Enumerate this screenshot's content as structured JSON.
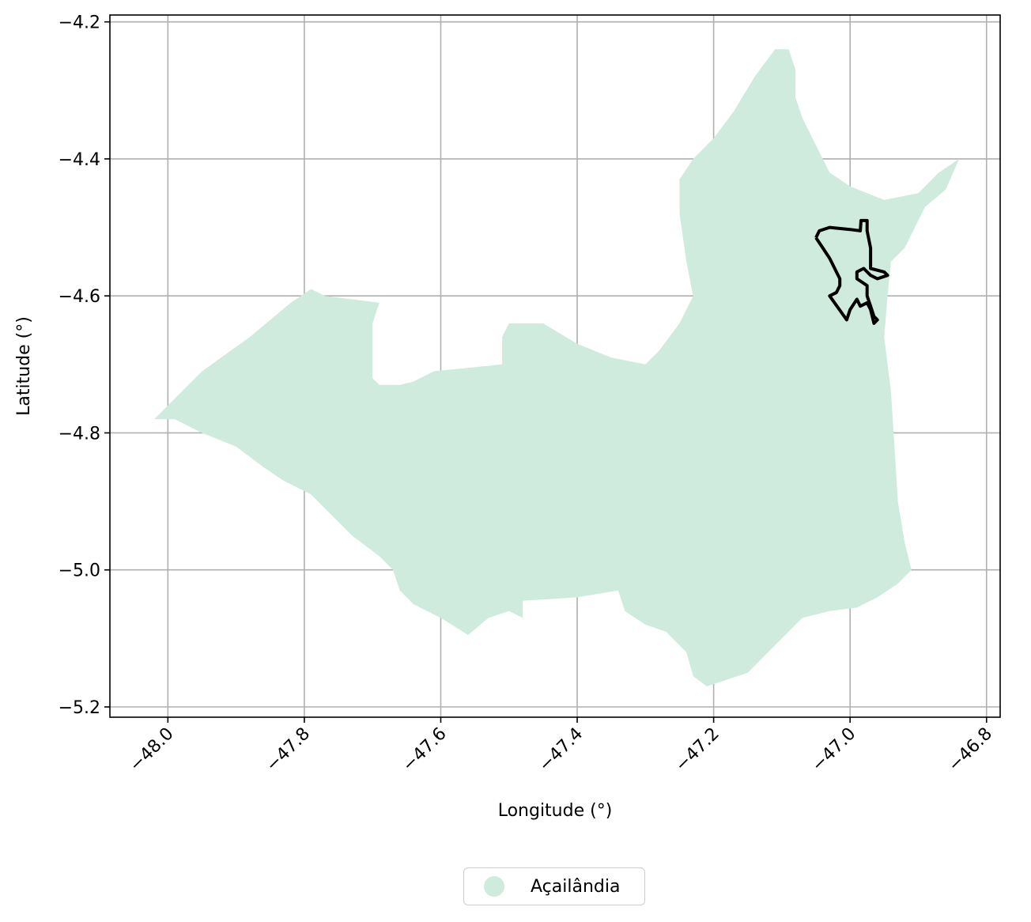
{
  "chart_data": {
    "type": "map",
    "xlabel": "Longitude (°)",
    "ylabel": "Latitude (°)",
    "xlim": [
      -48.085,
      -46.78
    ],
    "ylim": [
      -5.215,
      -4.19
    ],
    "xticks": [
      -48.0,
      -47.8,
      -47.6,
      -47.4,
      -47.2,
      -47.0,
      -46.8
    ],
    "xtick_labels": [
      "−48.0",
      "−47.8",
      "−47.6",
      "−47.4",
      "−47.2",
      "−47.0",
      "−46.8"
    ],
    "yticks": [
      -4.2,
      -4.4,
      -4.6,
      -4.8,
      -5.0,
      -5.2
    ],
    "ytick_labels": [
      "−4.2",
      "−4.4",
      "−4.6",
      "−4.8",
      "−5.0",
      "−5.2"
    ],
    "grid": true,
    "legend_position": "bottom-center",
    "region": {
      "name": "Açailândia",
      "color": "#cfebdd",
      "outline": [
        [
          -48.02,
          -4.78
        ],
        [
          -47.99,
          -4.78
        ],
        [
          -47.95,
          -4.8
        ],
        [
          -47.9,
          -4.82
        ],
        [
          -47.86,
          -4.85
        ],
        [
          -47.83,
          -4.87
        ],
        [
          -47.79,
          -4.89
        ],
        [
          -47.76,
          -4.92
        ],
        [
          -47.73,
          -4.95
        ],
        [
          -47.69,
          -4.98
        ],
        [
          -47.67,
          -5.0
        ],
        [
          -47.66,
          -5.03
        ],
        [
          -47.64,
          -5.05
        ],
        [
          -47.6,
          -5.07
        ],
        [
          -47.56,
          -5.095
        ],
        [
          -47.53,
          -5.07
        ],
        [
          -47.5,
          -5.06
        ],
        [
          -47.48,
          -5.07
        ],
        [
          -47.48,
          -5.045
        ],
        [
          -47.4,
          -5.04
        ],
        [
          -47.34,
          -5.03
        ],
        [
          -47.33,
          -5.06
        ],
        [
          -47.3,
          -5.08
        ],
        [
          -47.27,
          -5.09
        ],
        [
          -47.24,
          -5.12
        ],
        [
          -47.23,
          -5.155
        ],
        [
          -47.21,
          -5.17
        ],
        [
          -47.15,
          -5.15
        ],
        [
          -47.13,
          -5.13
        ],
        [
          -47.1,
          -5.1
        ],
        [
          -47.07,
          -5.07
        ],
        [
          -47.03,
          -5.06
        ],
        [
          -46.99,
          -5.055
        ],
        [
          -46.96,
          -5.04
        ],
        [
          -46.93,
          -5.02
        ],
        [
          -46.91,
          -5.0
        ],
        [
          -46.92,
          -4.96
        ],
        [
          -46.93,
          -4.9
        ],
        [
          -46.935,
          -4.82
        ],
        [
          -46.94,
          -4.74
        ],
        [
          -46.95,
          -4.66
        ],
        [
          -46.945,
          -4.6
        ],
        [
          -46.94,
          -4.55
        ],
        [
          -46.92,
          -4.53
        ],
        [
          -46.89,
          -4.47
        ],
        [
          -46.86,
          -4.445
        ],
        [
          -46.84,
          -4.4
        ],
        [
          -46.87,
          -4.42
        ],
        [
          -46.9,
          -4.45
        ],
        [
          -46.95,
          -4.46
        ],
        [
          -47.0,
          -4.44
        ],
        [
          -47.03,
          -4.42
        ],
        [
          -47.05,
          -4.38
        ],
        [
          -47.07,
          -4.34
        ],
        [
          -47.08,
          -4.31
        ],
        [
          -47.08,
          -4.27
        ],
        [
          -47.09,
          -4.24
        ],
        [
          -47.11,
          -4.24
        ],
        [
          -47.14,
          -4.28
        ],
        [
          -47.17,
          -4.33
        ],
        [
          -47.2,
          -4.37
        ],
        [
          -47.23,
          -4.4
        ],
        [
          -47.25,
          -4.43
        ],
        [
          -47.25,
          -4.48
        ],
        [
          -47.24,
          -4.55
        ],
        [
          -47.23,
          -4.6
        ],
        [
          -47.25,
          -4.64
        ],
        [
          -47.28,
          -4.68
        ],
        [
          -47.3,
          -4.7
        ],
        [
          -47.35,
          -4.69
        ],
        [
          -47.4,
          -4.67
        ],
        [
          -47.45,
          -4.64
        ],
        [
          -47.5,
          -4.64
        ],
        [
          -47.51,
          -4.66
        ],
        [
          -47.51,
          -4.7
        ],
        [
          -47.56,
          -4.705
        ],
        [
          -47.61,
          -4.71
        ],
        [
          -47.64,
          -4.725
        ],
        [
          -47.66,
          -4.73
        ],
        [
          -47.69,
          -4.73
        ],
        [
          -47.7,
          -4.72
        ],
        [
          -47.7,
          -4.64
        ],
        [
          -47.69,
          -4.61
        ],
        [
          -47.73,
          -4.605
        ],
        [
          -47.77,
          -4.6
        ],
        [
          -47.79,
          -4.59
        ],
        [
          -47.82,
          -4.61
        ],
        [
          -47.88,
          -4.66
        ],
        [
          -47.95,
          -4.71
        ]
      ]
    },
    "highlight": {
      "stroke": "#000000",
      "outline": [
        [
          -47.05,
          -4.515
        ],
        [
          -47.045,
          -4.505
        ],
        [
          -47.03,
          -4.5
        ],
        [
          -47.0,
          -4.503
        ],
        [
          -46.985,
          -4.505
        ],
        [
          -46.984,
          -4.49
        ],
        [
          -46.975,
          -4.49
        ],
        [
          -46.975,
          -4.505
        ],
        [
          -46.97,
          -4.53
        ],
        [
          -46.97,
          -4.56
        ],
        [
          -46.95,
          -4.565
        ],
        [
          -46.945,
          -4.57
        ],
        [
          -46.96,
          -4.575
        ],
        [
          -46.97,
          -4.57
        ],
        [
          -46.98,
          -4.56
        ],
        [
          -46.99,
          -4.565
        ],
        [
          -46.99,
          -4.575
        ],
        [
          -46.975,
          -4.585
        ],
        [
          -46.975,
          -4.6
        ],
        [
          -46.97,
          -4.615
        ],
        [
          -46.965,
          -4.63
        ],
        [
          -46.96,
          -4.635
        ],
        [
          -46.965,
          -4.64
        ],
        [
          -46.97,
          -4.62
        ],
        [
          -46.975,
          -4.61
        ],
        [
          -46.985,
          -4.615
        ],
        [
          -46.99,
          -4.605
        ],
        [
          -47.0,
          -4.62
        ],
        [
          -47.005,
          -4.635
        ],
        [
          -47.03,
          -4.6
        ],
        [
          -47.02,
          -4.595
        ],
        [
          -47.015,
          -4.585
        ],
        [
          -47.015,
          -4.575
        ],
        [
          -47.03,
          -4.545
        ],
        [
          -47.04,
          -4.53
        ]
      ]
    }
  },
  "legend": {
    "label": "Açailândia",
    "color": "#cfebdd"
  }
}
